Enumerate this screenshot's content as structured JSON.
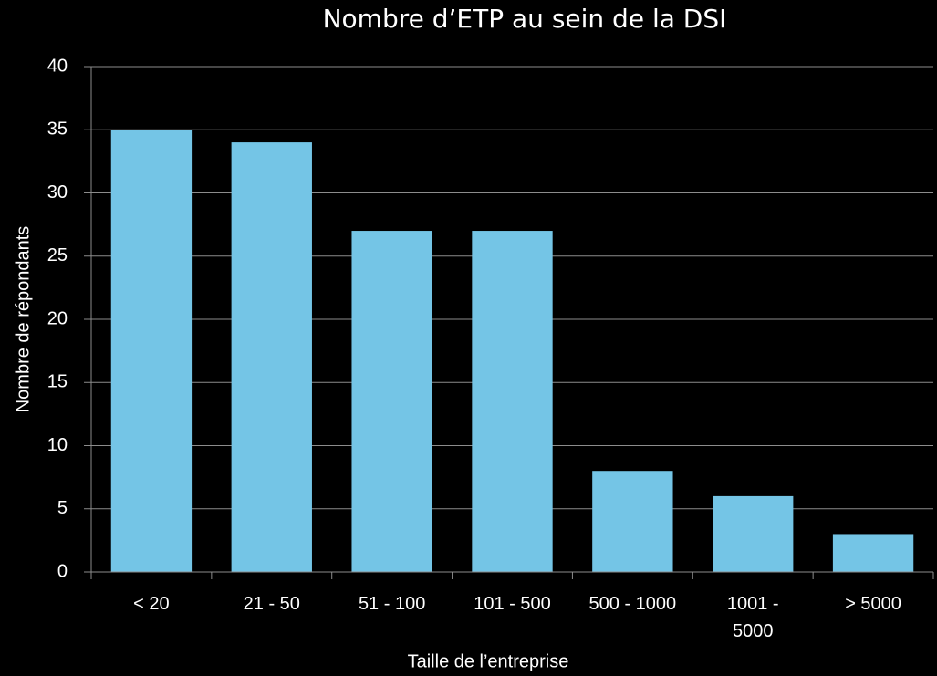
{
  "chart_data": {
    "type": "bar",
    "title": "Nombre d’ETP au sein de la DSI",
    "x_label": "Taille de l’entreprise",
    "y_label": "Nombre de répondants",
    "categories": [
      "< 20",
      "21 - 50",
      "51 - 100",
      "101 - 500",
      "500 - 1000",
      "1001 -\n5000",
      "> 5000"
    ],
    "values": [
      35,
      34,
      27,
      27,
      8,
      6,
      3
    ],
    "color": "#74c5e6",
    "ylim": [
      0,
      40
    ],
    "yticks": [
      0,
      5,
      10,
      15,
      20,
      25,
      30,
      35,
      40
    ],
    "grid": true
  }
}
